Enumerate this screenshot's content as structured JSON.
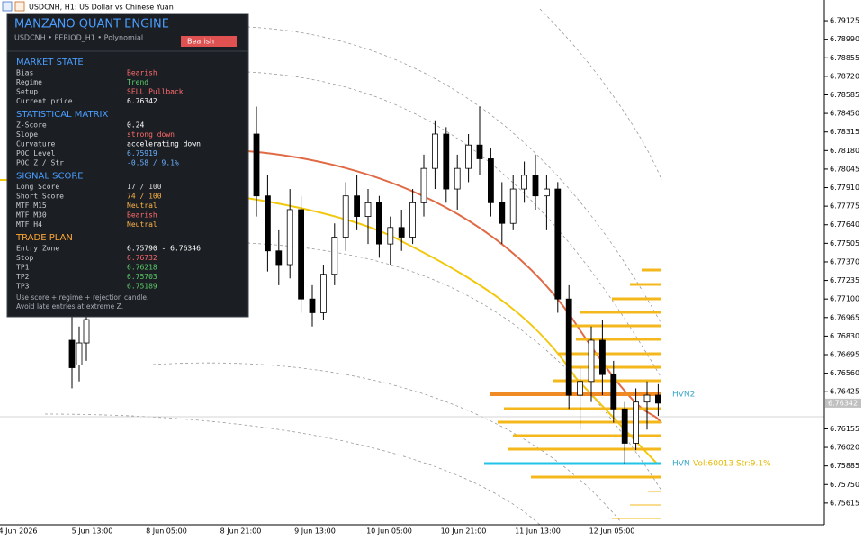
{
  "header": {
    "symbol": "USDCNH, H1:  US Dollar vs Chinese Yuan"
  },
  "panel": {
    "title": "MANZANO QUANT ENGINE",
    "subtitle": "USDCNH  •  PERIOD_H1  •  Polynomial",
    "badge": "Bearish",
    "sections": [
      {
        "title": "MARKET STATE",
        "color": "#4a9eff",
        "rows": [
          {
            "label": "Bias",
            "value": "Bearish",
            "color": "#ff6b6b"
          },
          {
            "label": "Regime",
            "value": "Trend",
            "color": "#5ccf6a"
          },
          {
            "label": "Setup",
            "value": "SELL Pullback",
            "color": "#ff6b6b"
          },
          {
            "label": "Current price",
            "value": "6.76342",
            "color": "#ffffff"
          }
        ]
      },
      {
        "title": "STATISTICAL MATRIX",
        "color": "#4a9eff",
        "rows": [
          {
            "label": "Z-Score",
            "value": "0.24",
            "color": "#ffffff"
          },
          {
            "label": "Slope",
            "value": "strong down",
            "color": "#ff6b6b"
          },
          {
            "label": "Curvature",
            "value": "accelerating down",
            "color": "#ffffff"
          },
          {
            "label": "POC Level",
            "value": "6.75919",
            "color": "#6ab0ff"
          },
          {
            "label": "POC Z / Str",
            "value": "-0.58 / 9.1%",
            "color": "#6ab0ff"
          }
        ]
      },
      {
        "title": "SIGNAL SCORE",
        "color": "#4a9eff",
        "rows": [
          {
            "label": "Long Score",
            "value": "17 / 100",
            "color": "#d8d8d8"
          },
          {
            "label": "Short Score",
            "value": "74 / 100",
            "color": "#ffb347"
          },
          {
            "label": "MTF M15",
            "value": "Neutral",
            "color": "#ffb347"
          },
          {
            "label": "MTF M30",
            "value": "Bearish",
            "color": "#ff6b6b"
          },
          {
            "label": "MTF H4",
            "value": "Neutral",
            "color": "#ffb347"
          }
        ]
      },
      {
        "title": "TRADE PLAN",
        "color": "#ffa733",
        "rows": [
          {
            "label": "Entry Zone",
            "value": "6.75790 - 6.76346",
            "color": "#ffffff"
          },
          {
            "label": "Stop",
            "value": "6.76732",
            "color": "#ff6b6b"
          },
          {
            "label": "TP1",
            "value": "6.76218",
            "color": "#5ccf6a"
          },
          {
            "label": "TP2",
            "value": "6.75703",
            "color": "#5ccf6a"
          },
          {
            "label": "TP3",
            "value": "6.75189",
            "color": "#5ccf6a"
          }
        ]
      }
    ],
    "notes": [
      "Use score + regime + rejection candle.",
      "Avoid late entries at extreme Z."
    ]
  },
  "chart_data": {
    "type": "candlestick",
    "up_color": "#ffffff",
    "down_color": "#000000",
    "candles": [
      [
        6.768,
        6.77,
        6.7645,
        6.766
      ],
      [
        6.7662,
        6.769,
        6.765,
        6.7678
      ],
      [
        6.7678,
        6.7705,
        6.7665,
        6.7695
      ],
      [
        6.783,
        6.785,
        6.777,
        6.7785
      ],
      [
        6.7785,
        6.78,
        6.773,
        6.7745
      ],
      [
        6.7745,
        6.776,
        6.772,
        6.7735
      ],
      [
        6.7735,
        6.779,
        6.7725,
        6.7775
      ],
      [
        6.7775,
        6.7785,
        6.77,
        6.771
      ],
      [
        6.771,
        6.772,
        6.769,
        6.77
      ],
      [
        6.77,
        6.7735,
        6.7695,
        6.7728
      ],
      [
        6.7728,
        6.7765,
        6.772,
        6.7755
      ],
      [
        6.7755,
        6.7795,
        6.7745,
        6.7785
      ],
      [
        6.7785,
        6.78,
        6.776,
        6.777
      ],
      [
        6.777,
        6.779,
        6.775,
        6.778
      ],
      [
        6.778,
        6.7785,
        6.774,
        6.775
      ],
      [
        6.775,
        6.777,
        6.7735,
        6.7762
      ],
      [
        6.7762,
        6.7775,
        6.7745,
        6.7755
      ],
      [
        6.7755,
        6.779,
        6.775,
        6.778
      ],
      [
        6.778,
        6.7815,
        6.777,
        6.7805
      ],
      [
        6.7805,
        6.784,
        6.779,
        6.783
      ],
      [
        6.783,
        6.7835,
        6.778,
        6.779
      ],
      [
        6.779,
        6.7815,
        6.7775,
        6.7805
      ],
      [
        6.7805,
        6.783,
        6.7795,
        6.7822
      ],
      [
        6.7822,
        6.785,
        6.78,
        6.7812
      ],
      [
        6.7812,
        6.782,
        6.777,
        6.778
      ],
      [
        6.778,
        6.7795,
        6.775,
        6.7765
      ],
      [
        6.7765,
        6.78,
        6.776,
        6.779
      ],
      [
        6.779,
        6.781,
        6.778,
        6.78
      ],
      [
        6.78,
        6.7815,
        6.7775,
        6.7785
      ],
      [
        6.7785,
        6.78,
        6.776,
        6.779
      ],
      [
        6.779,
        6.7795,
        6.77,
        6.771
      ],
      [
        6.771,
        6.772,
        6.763,
        6.764
      ],
      [
        6.764,
        6.766,
        6.7615,
        6.765
      ],
      [
        6.765,
        6.769,
        6.7635,
        6.768
      ],
      [
        6.768,
        6.7695,
        6.764,
        6.7655
      ],
      [
        6.7655,
        6.7665,
        6.762,
        6.763
      ],
      [
        6.763,
        6.7635,
        6.759,
        6.7605
      ],
      [
        6.7605,
        6.7645,
        6.76,
        6.7635
      ],
      [
        6.7635,
        6.765,
        6.7615,
        6.764
      ],
      [
        6.764,
        6.7648,
        6.7625,
        6.76342
      ]
    ],
    "ylim": [
      6.75457,
      6.79276
    ],
    "yticks": [
      {
        "value": 6.79125,
        "label": "6.79125"
      },
      {
        "value": 6.7899,
        "label": "6.78990"
      },
      {
        "value": 6.78855,
        "label": "6.78855"
      },
      {
        "value": 6.7872,
        "label": "6.78720"
      },
      {
        "value": 6.78585,
        "label": "6.78585"
      },
      {
        "value": 6.7845,
        "label": "6.78450"
      },
      {
        "value": 6.78315,
        "label": "6.78315"
      },
      {
        "value": 6.7818,
        "label": "6.78180"
      },
      {
        "value": 6.78045,
        "label": "6.78045"
      },
      {
        "value": 6.7791,
        "label": "6.77910"
      },
      {
        "value": 6.77775,
        "label": "6.77775"
      },
      {
        "value": 6.7764,
        "label": "6.77640"
      },
      {
        "value": 6.77505,
        "label": "6.77505"
      },
      {
        "value": 6.7737,
        "label": "6.77370"
      },
      {
        "value": 6.77235,
        "label": "6.77235"
      },
      {
        "value": 6.771,
        "label": "6.77100"
      },
      {
        "value": 6.76965,
        "label": "6.76965"
      },
      {
        "value": 6.7683,
        "label": "6.76830"
      },
      {
        "value": 6.76695,
        "label": "6.76695"
      },
      {
        "value": 6.7656,
        "label": "6.76560"
      },
      {
        "value": 6.76425,
        "label": "6.76425"
      },
      {
        "value": 6.76155,
        "label": "6.76155"
      },
      {
        "value": 6.7602,
        "label": "6.76020"
      },
      {
        "value": 6.75885,
        "label": "6.75885"
      },
      {
        "value": 6.7575,
        "label": "6.75750"
      },
      {
        "value": 6.75615,
        "label": "6.75615"
      }
    ],
    "current_price": {
      "value": 6.76342,
      "label": "6.76342"
    },
    "xlabels": [
      "4 Jun 2026",
      "5 Jun 13:00",
      "8 Jun 05:00",
      "8 Jun 21:00",
      "9 Jun 13:00",
      "10 Jun 05:00",
      "10 Jun 21:00",
      "11 Jun 13:00",
      "12 Jun 05:00"
    ],
    "annotations": {
      "hvn2": "HVN2",
      "hvn": "HVN",
      "hvn_stats": "Vol:60013  Str:9.1%"
    }
  }
}
